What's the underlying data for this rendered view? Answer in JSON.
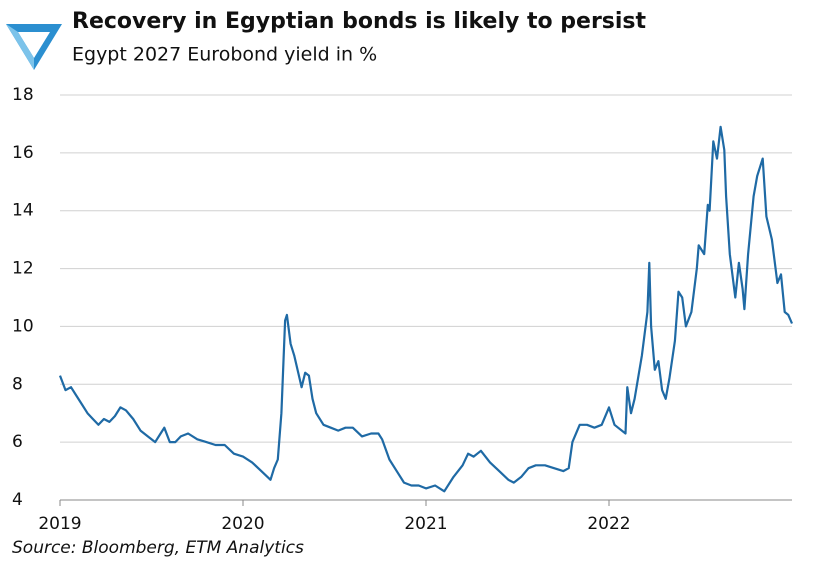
{
  "chart_data": {
    "type": "line",
    "title": "Recovery in Egyptian bonds is likely to persist",
    "subtitle": "Egypt 2027 Eurobond yield in %",
    "source": "Source: Bloomberg, ETM Analytics",
    "x": [
      2019.0,
      2019.03,
      2019.06,
      2019.09,
      2019.12,
      2019.15,
      2019.18,
      2019.21,
      2019.24,
      2019.27,
      2019.3,
      2019.33,
      2019.36,
      2019.4,
      2019.44,
      2019.48,
      2019.52,
      2019.55,
      2019.57,
      2019.6,
      2019.63,
      2019.66,
      2019.7,
      2019.75,
      2019.8,
      2019.85,
      2019.9,
      2019.95,
      2020.0,
      2020.05,
      2020.1,
      2020.15,
      2020.17,
      2020.19,
      2020.21,
      2020.23,
      2020.24,
      2020.26,
      2020.28,
      2020.32,
      2020.34,
      2020.36,
      2020.38,
      2020.4,
      2020.44,
      2020.48,
      2020.52,
      2020.56,
      2020.6,
      2020.65,
      2020.7,
      2020.74,
      2020.76,
      2020.8,
      2020.84,
      2020.88,
      2020.92,
      2020.96,
      2021.0,
      2021.05,
      2021.1,
      2021.15,
      2021.2,
      2021.23,
      2021.26,
      2021.3,
      2021.35,
      2021.4,
      2021.45,
      2021.48,
      2021.52,
      2021.56,
      2021.6,
      2021.65,
      2021.7,
      2021.75,
      2021.78,
      2021.8,
      2021.84,
      2021.88,
      2021.92,
      2021.96,
      2022.0,
      2022.03,
      2022.05,
      2022.09,
      2022.1,
      2022.12,
      2022.14,
      2022.18,
      2022.21,
      2022.22,
      2022.23,
      2022.25,
      2022.27,
      2022.29,
      2022.31,
      2022.33,
      2022.36,
      2022.38,
      2022.4,
      2022.42,
      2022.45,
      2022.48,
      2022.49,
      2022.52,
      2022.54,
      2022.55,
      2022.57,
      2022.59,
      2022.61,
      2022.63,
      2022.64,
      2022.66,
      2022.69,
      2022.71,
      2022.73,
      2022.74,
      2022.76,
      2022.79,
      2022.81,
      2022.84,
      2022.86,
      2022.89,
      2022.92,
      2022.94,
      2022.96,
      2022.98,
      2023.0
    ],
    "series": [
      {
        "name": "Egypt 2027 Eurobond yield",
        "color": "#1f6aa5",
        "values": [
          8.3,
          7.8,
          7.9,
          7.6,
          7.3,
          7.0,
          6.8,
          6.6,
          6.8,
          6.7,
          6.9,
          7.2,
          7.1,
          6.8,
          6.4,
          6.2,
          6.0,
          6.3,
          6.5,
          6.0,
          6.0,
          6.2,
          6.3,
          6.1,
          6.0,
          5.9,
          5.9,
          5.6,
          5.5,
          5.3,
          5.0,
          4.7,
          5.1,
          5.4,
          7.0,
          10.2,
          10.4,
          9.4,
          9.0,
          7.9,
          8.4,
          8.3,
          7.5,
          7.0,
          6.6,
          6.5,
          6.4,
          6.5,
          6.5,
          6.2,
          6.3,
          6.3,
          6.1,
          5.4,
          5.0,
          4.6,
          4.5,
          4.5,
          4.4,
          4.5,
          4.3,
          4.8,
          5.2,
          5.6,
          5.5,
          5.7,
          5.3,
          5.0,
          4.7,
          4.6,
          4.8,
          5.1,
          5.2,
          5.2,
          5.1,
          5.0,
          5.1,
          6.0,
          6.6,
          6.6,
          6.5,
          6.6,
          7.2,
          6.6,
          6.5,
          6.3,
          7.9,
          7.0,
          7.5,
          9.0,
          10.5,
          12.2,
          10.0,
          8.5,
          8.8,
          7.8,
          7.5,
          8.2,
          9.5,
          11.2,
          11.0,
          10.0,
          10.5,
          12.0,
          12.8,
          12.5,
          14.2,
          14.0,
          16.4,
          15.8,
          16.9,
          16.1,
          14.5,
          12.5,
          11.0,
          12.2,
          11.3,
          10.6,
          12.5,
          14.5,
          15.2,
          15.8,
          13.8,
          13.0,
          11.5,
          11.8,
          10.5,
          10.4,
          10.1
        ]
      }
    ],
    "xlim": [
      2019,
      2023
    ],
    "xticks": [
      2019,
      2020,
      2021,
      2022
    ],
    "ylim": [
      4,
      18
    ],
    "yticks": [
      4,
      6,
      8,
      10,
      12,
      14,
      16,
      18
    ],
    "grid": true
  }
}
